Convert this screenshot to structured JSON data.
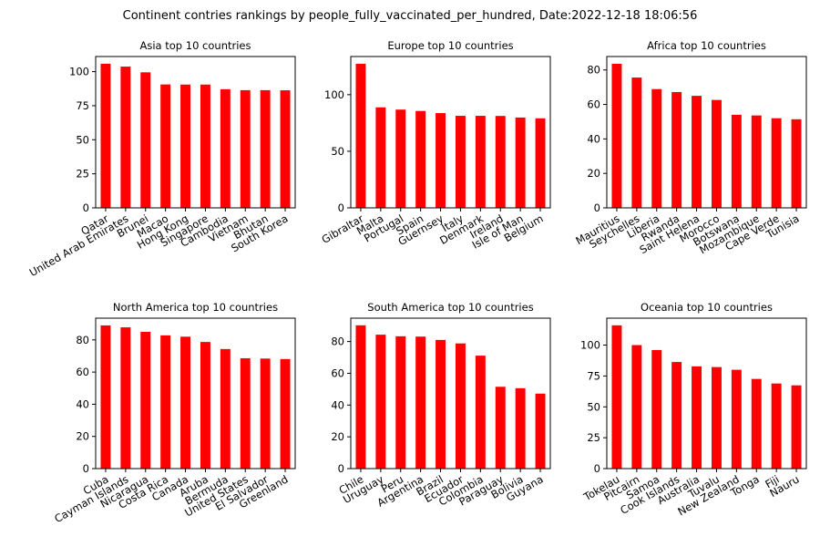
{
  "suptitle": "Continent contries rankings by people_fully_vaccinated_per_hundred, Date:2022-12-18 18:06:56",
  "colors": {
    "bar": "#ff0000",
    "axis": "#000000"
  },
  "chart_data": [
    {
      "type": "bar",
      "title": "Asia top 10 countries",
      "categories": [
        "Qatar",
        "United Arab Emirates",
        "Brunei",
        "Macao",
        "Hong Kong",
        "Singapore",
        "Cambodia",
        "Vietnam",
        "Bhutan",
        "South Korea"
      ],
      "values": [
        105.8,
        103.7,
        99.5,
        90.6,
        90.5,
        90.5,
        87.1,
        86.4,
        86.4,
        86.3
      ],
      "ylim": [
        0,
        111.1
      ],
      "yticks": [
        0,
        25,
        50,
        75,
        100
      ]
    },
    {
      "type": "bar",
      "title": "Europe top 10 countries",
      "categories": [
        "Gibraltar",
        "Malta",
        "Portugal",
        "Spain",
        "Guernsey",
        "Italy",
        "Denmark",
        "Ireland",
        "Isle of Man",
        "Belgium"
      ],
      "values": [
        127.3,
        88.8,
        86.8,
        85.6,
        83.7,
        81.3,
        81.3,
        81.2,
        79.8,
        79.1
      ],
      "ylim": [
        0,
        133.7
      ],
      "yticks": [
        0,
        50,
        100
      ]
    },
    {
      "type": "bar",
      "title": "Africa top 10 countries",
      "categories": [
        "Mauritius",
        "Seychelles",
        "Liberia",
        "Rwanda",
        "Saint Helena",
        "Morocco",
        "Botswana",
        "Mozambique",
        "Cape Verde",
        "Tunisia"
      ],
      "values": [
        83.6,
        75.6,
        68.9,
        67.2,
        65.0,
        62.6,
        54.0,
        53.6,
        52.0,
        51.4
      ],
      "ylim": [
        0,
        87.8
      ],
      "yticks": [
        0,
        20,
        40,
        60,
        80
      ]
    },
    {
      "type": "bar",
      "title": "North America top 10 countries",
      "categories": [
        "Cuba",
        "Cayman Islands",
        "Nicaragua",
        "Costa Rica",
        "Canada",
        "Aruba",
        "Bermuda",
        "United States",
        "El Salvador",
        "Greenland"
      ],
      "values": [
        89.0,
        87.8,
        85.0,
        82.8,
        82.0,
        78.7,
        74.3,
        68.6,
        68.4,
        68.1
      ],
      "ylim": [
        0,
        93.5
      ],
      "yticks": [
        0,
        20,
        40,
        60,
        80
      ]
    },
    {
      "type": "bar",
      "title": "South America top 10 countries",
      "categories": [
        "Chile",
        "Uruguay",
        "Peru",
        "Argentina",
        "Brazil",
        "Ecuador",
        "Colombia",
        "Paraguay",
        "Bolivia",
        "Guyana"
      ],
      "values": [
        90.2,
        84.3,
        83.3,
        83.1,
        81.0,
        78.8,
        71.1,
        51.5,
        50.6,
        47.2
      ],
      "ylim": [
        0,
        94.7
      ],
      "yticks": [
        0,
        20,
        40,
        60,
        80
      ]
    },
    {
      "type": "bar",
      "title": "Oceania top 10 countries",
      "categories": [
        "Tokelau",
        "Pitcairn",
        "Samoa",
        "Cook Islands",
        "Australia",
        "Tuvalu",
        "New Zealand",
        "Tonga",
        "Fiji",
        "Nauru"
      ],
      "values": [
        116.0,
        100.0,
        96.0,
        86.3,
        82.8,
        82.2,
        80.0,
        72.6,
        68.9,
        67.4
      ],
      "ylim": [
        0,
        121.8
      ],
      "yticks": [
        0,
        25,
        50,
        75,
        100
      ]
    }
  ]
}
